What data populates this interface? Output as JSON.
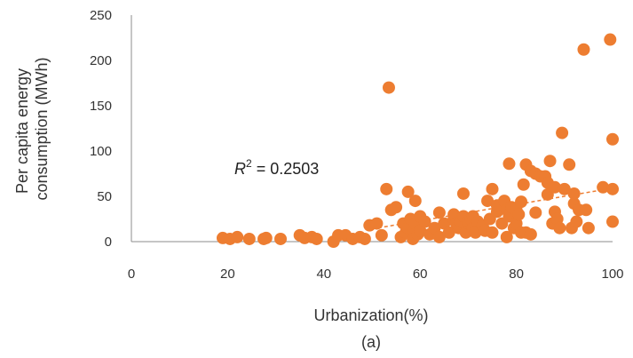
{
  "chart_data": {
    "type": "scatter",
    "title": "",
    "xlabel": "Urbanization(%)",
    "ylabel_lines": [
      "Per capita energy",
      "consumption (MWh)"
    ],
    "caption": "(a)",
    "annotation": {
      "r_label": "R",
      "r_sup": "2",
      "r_value": " = 0.2503"
    },
    "xlim": [
      0,
      100
    ],
    "ylim": [
      0,
      250
    ],
    "x_ticks": [
      0,
      20,
      40,
      60,
      80,
      100
    ],
    "y_ticks": [
      0,
      50,
      100,
      150,
      200,
      250
    ],
    "grid": false,
    "legend": "none",
    "marker_color": "#ED7D31",
    "trendline": {
      "color": "#ED7D31",
      "style": "dashed",
      "x": [
        50,
        100
      ],
      "y": [
        14,
        59
      ]
    },
    "x": [
      19,
      20.5,
      22,
      24.5,
      27.5,
      28,
      31,
      35,
      36,
      37.5,
      38.5,
      42,
      43,
      44.5,
      46,
      47.5,
      48.5,
      49.5,
      51,
      52,
      53,
      53.5,
      54,
      55,
      56,
      56.5,
      57,
      57.5,
      57.5,
      58,
      58.5,
      58.5,
      59,
      59,
      59.5,
      60,
      60,
      61,
      62,
      63,
      64,
      64,
      65,
      66,
      67,
      67,
      67.5,
      68,
      68,
      68.5,
      69,
      69,
      69.5,
      70,
      70,
      70.5,
      71,
      71,
      71.5,
      72,
      73,
      73.5,
      74,
      74.5,
      75,
      75,
      76,
      76,
      77,
      77.5,
      78,
      78,
      78.5,
      78.5,
      79,
      79.5,
      80,
      80,
      80.5,
      81,
      81,
      81.5,
      82,
      82,
      83,
      83,
      84,
      84,
      85,
      86,
      86.5,
      86.5,
      87,
      87.5,
      88,
      88,
      88.5,
      89,
      89.5,
      90,
      91,
      91.5,
      92,
      92,
      92.5,
      93,
      94,
      94.5,
      95,
      98,
      99.5,
      100,
      100,
      100
    ],
    "y": [
      4,
      3,
      5,
      3,
      3,
      4,
      3,
      7,
      4,
      5,
      3,
      0,
      7,
      7,
      3,
      5,
      3,
      18,
      20,
      7,
      58,
      170,
      35,
      38,
      5,
      20,
      10,
      15,
      55,
      25,
      10,
      3,
      20,
      45,
      8,
      28,
      12,
      22,
      8,
      15,
      5,
      32,
      20,
      10,
      25,
      30,
      20,
      15,
      18,
      22,
      28,
      53,
      10,
      20,
      22,
      25,
      15,
      28,
      10,
      22,
      18,
      12,
      45,
      25,
      58,
      10,
      33,
      40,
      20,
      45,
      35,
      5,
      28,
      86,
      38,
      15,
      35,
      20,
      30,
      44,
      10,
      63,
      85,
      10,
      78,
      8,
      32,
      75,
      72,
      72,
      65,
      52,
      89,
      20,
      33,
      60,
      25,
      15,
      120,
      58,
      85,
      15,
      42,
      53,
      22,
      35,
      212,
      35,
      15,
      60,
      223,
      58,
      113,
      22
    ]
  }
}
